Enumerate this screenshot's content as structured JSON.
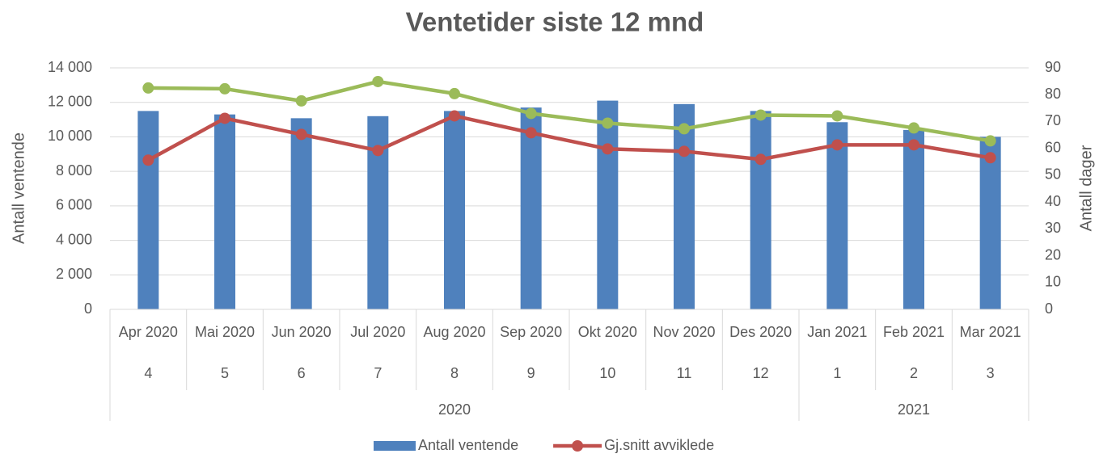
{
  "chart_data": {
    "type": "bar_line",
    "title": "Ventetider siste 12 mnd",
    "y_label": "Antall ventende",
    "y2_label": "Antall dager",
    "categories": [
      "Apr 2020",
      "Mai 2020",
      "Jun 2020",
      "Jul 2020",
      "Aug 2020",
      "Sep 2020",
      "Okt 2020",
      "Nov 2020",
      "Des 2020",
      "Jan 2021",
      "Feb 2021",
      "Mar 2021"
    ],
    "month_numbers": [
      "4",
      "5",
      "6",
      "7",
      "8",
      "9",
      "10",
      "11",
      "12",
      "1",
      "2",
      "3"
    ],
    "category_groups": [
      {
        "label": "2020",
        "count": 9
      },
      {
        "label": "2021",
        "count": 3
      }
    ],
    "series": [
      {
        "name": "Antall ventende",
        "type": "bar",
        "color": "#4f81bd",
        "values": [
          11500,
          11300,
          11080,
          11200,
          11500,
          11700,
          12100,
          11900,
          11500,
          10850,
          10400,
          10000
        ]
      },
      {
        "name": "Gj.snitt avviklede",
        "type": "line",
        "axis": "y2",
        "color": "#c0504d",
        "values": [
          55.6,
          71.2,
          65.2,
          59.2,
          72.1,
          65.8,
          59.8,
          58.9,
          55.9,
          61.3,
          61.3,
          56.5
        ]
      },
      {
        "type": "line",
        "axis": "y2",
        "color": "#9bbb59",
        "values": [
          82.5,
          82.2,
          77.7,
          84.9,
          80.4,
          73.0,
          69.4,
          67.3,
          72.4,
          72.1,
          67.6,
          62.8
        ]
      }
    ],
    "ylim": [
      0,
      14000
    ],
    "yticks": [
      0,
      {
        "value": 2000,
        "label": "2 000"
      },
      {
        "value": 4000,
        "label": "4 000"
      },
      {
        "value": 6000,
        "label": "6 000"
      },
      {
        "value": 8000,
        "label": "8 000"
      },
      {
        "value": 10000,
        "label": "10 000"
      },
      {
        "value": 12000,
        "label": "12 000"
      },
      {
        "value": 14000,
        "label": "14 000"
      }
    ],
    "y2lim": [
      0,
      90
    ],
    "y2ticks": [
      0,
      10,
      20,
      30,
      40,
      50,
      60,
      70,
      80,
      90
    ],
    "grid": true,
    "legend": "bottom"
  }
}
